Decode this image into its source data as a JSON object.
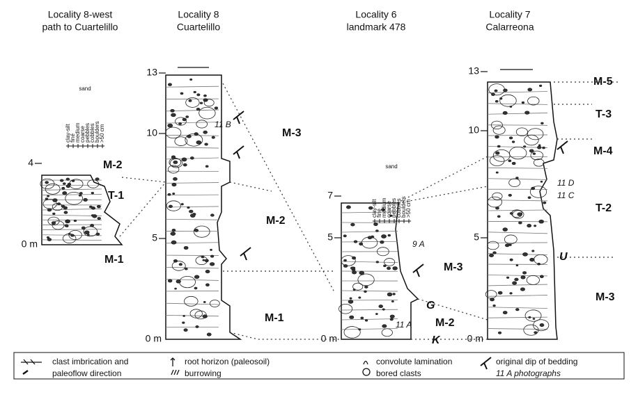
{
  "columns": [
    {
      "title": [
        "Locality 8-west",
        "path to Cuartelillo"
      ],
      "scale": [
        "4",
        "0 m"
      ],
      "units": [
        "M-2",
        "T-1",
        "M-1"
      ]
    },
    {
      "title": [
        "Locality 8",
        "Cuartelillo"
      ],
      "scale": [
        "13",
        "10",
        "5",
        "0 m"
      ],
      "units": [
        "M-3",
        "M-2",
        "M-1"
      ]
    },
    {
      "title": [
        "Locality 6",
        "landmark 478"
      ],
      "scale": [
        "7",
        "5",
        "0 m"
      ],
      "units": [
        "M-3",
        "G",
        "M-2",
        "K"
      ]
    },
    {
      "title": [
        "Locality 7",
        "Calarreona"
      ],
      "scale": [
        "13",
        "10",
        "5",
        "0 m"
      ],
      "units": [
        "M-5",
        "T-3",
        "M-4",
        "T-2",
        "U",
        "M-3"
      ]
    }
  ],
  "grain_size_legend": {
    "group": "sand",
    "classes": [
      "clay-silt",
      "fine",
      "medium",
      "coarse",
      "pebbles",
      "cobbles",
      "boulders",
      ">50 cm"
    ]
  },
  "photos": [
    "11 B",
    "9 A",
    "11 A",
    "11 D",
    "11 C"
  ],
  "legend": [
    "clast imbrication and",
    "paleoflow direction",
    "root horizon (paleosoil)",
    "burrowing",
    "convolute lamination",
    "bored clasts",
    "original dip of bedding",
    "11 A photographs"
  ]
}
